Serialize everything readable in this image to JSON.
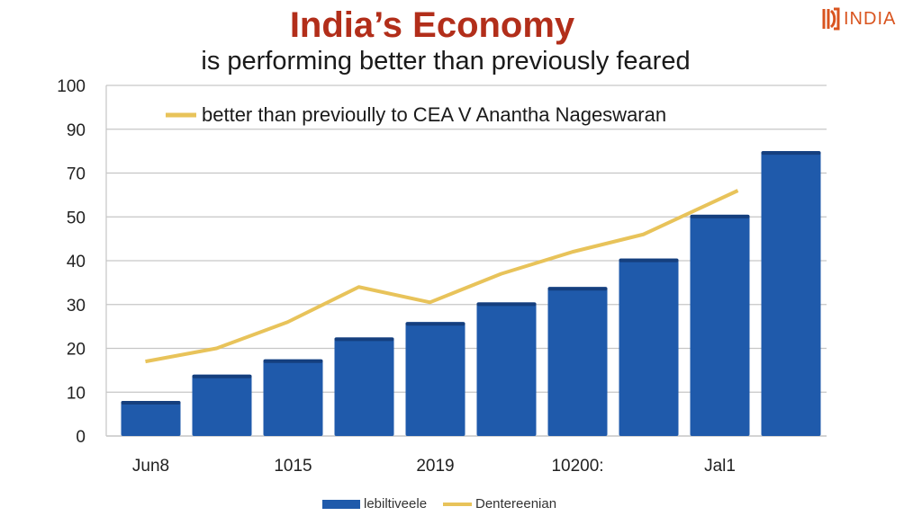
{
  "header": {
    "title": "India’s Economy",
    "subtitle": "is performing better than previously feared",
    "logo_text": "INDIA"
  },
  "colors": {
    "title": "#b22e1a",
    "bar": "#1f5aab",
    "bar_dark": "#153f7e",
    "line": "#e8c35a",
    "grid": "#c6c6c6",
    "axis_text": "#222222",
    "logo": "#d9541f"
  },
  "chart_data": {
    "type": "bar",
    "annotation": "better than previoully to CEA V Anantha Nageswaran",
    "y_tick_labels": [
      "0",
      "10",
      "20",
      "30",
      "40",
      "50",
      "70",
      "90",
      "100"
    ],
    "ylim": [
      0,
      8
    ],
    "grid": true,
    "x_labels": [
      {
        "label": "Jun8",
        "slot": 0
      },
      {
        "label": "1015",
        "slot": 2
      },
      {
        "label": "2019",
        "slot": 4
      },
      {
        "label": "10200:",
        "slot": 6
      },
      {
        "label": "Jal1",
        "slot": 8
      }
    ],
    "series": [
      {
        "name": "lebiltiveele",
        "type": "bar",
        "values": [
          0.8,
          1.4,
          1.75,
          2.25,
          2.6,
          3.05,
          3.4,
          4.05,
          5.05,
          6.5
        ]
      },
      {
        "name": "Dentereenian",
        "type": "line",
        "values": [
          1.7,
          2.0,
          2.6,
          3.4,
          3.05,
          3.7,
          4.2,
          4.6,
          5.6
        ]
      }
    ],
    "legend_position": "bottom"
  }
}
